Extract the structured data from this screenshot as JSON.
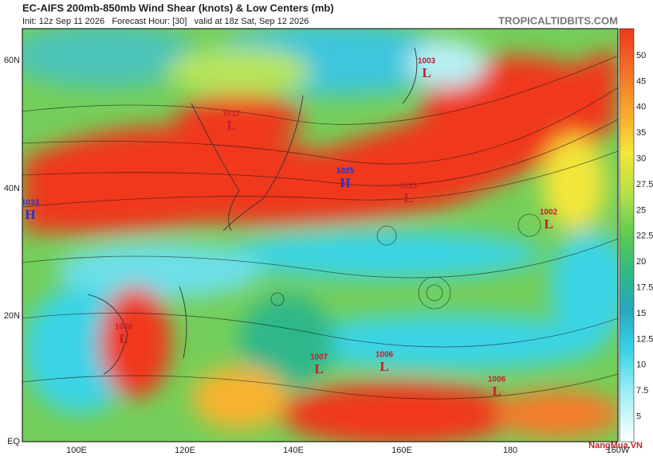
{
  "header": {
    "title": "EC-AIFS 200mb-850mb Wind Shear (knots) & Low Centers (mb)",
    "init": "Init: 12z Sep 11 2026   Forecast Hour: [30]   valid at 18z Sat, Sep 12 2026",
    "site": "TROPICALTIDBITS.COM"
  },
  "lat_labels": [
    "60N",
    "40N",
    "20N",
    "EQ"
  ],
  "lon_labels": [
    "100E",
    "120E",
    "140E",
    "160E",
    "180",
    "160W"
  ],
  "colorbar_labels": [
    "50",
    "45",
    "40",
    "35",
    "30",
    "27.5",
    "25",
    "22.5",
    "20",
    "17.5",
    "15",
    "12.5",
    "10",
    "7.5",
    "5"
  ],
  "centers": [
    {
      "value": "1003",
      "kind": "L"
    },
    {
      "value": "1012",
      "kind": "L"
    },
    {
      "value": "1025",
      "kind": "H"
    },
    {
      "value": "1013",
      "kind": "L"
    },
    {
      "value": "1033",
      "kind": "H"
    },
    {
      "value": "1002",
      "kind": "L"
    },
    {
      "value": "1008",
      "kind": "L"
    },
    {
      "value": "1007",
      "kind": "L"
    },
    {
      "value": "1006",
      "kind": "L"
    },
    {
      "value": "1006",
      "kind": "L"
    }
  ],
  "watermark": "NangMua.VN"
}
